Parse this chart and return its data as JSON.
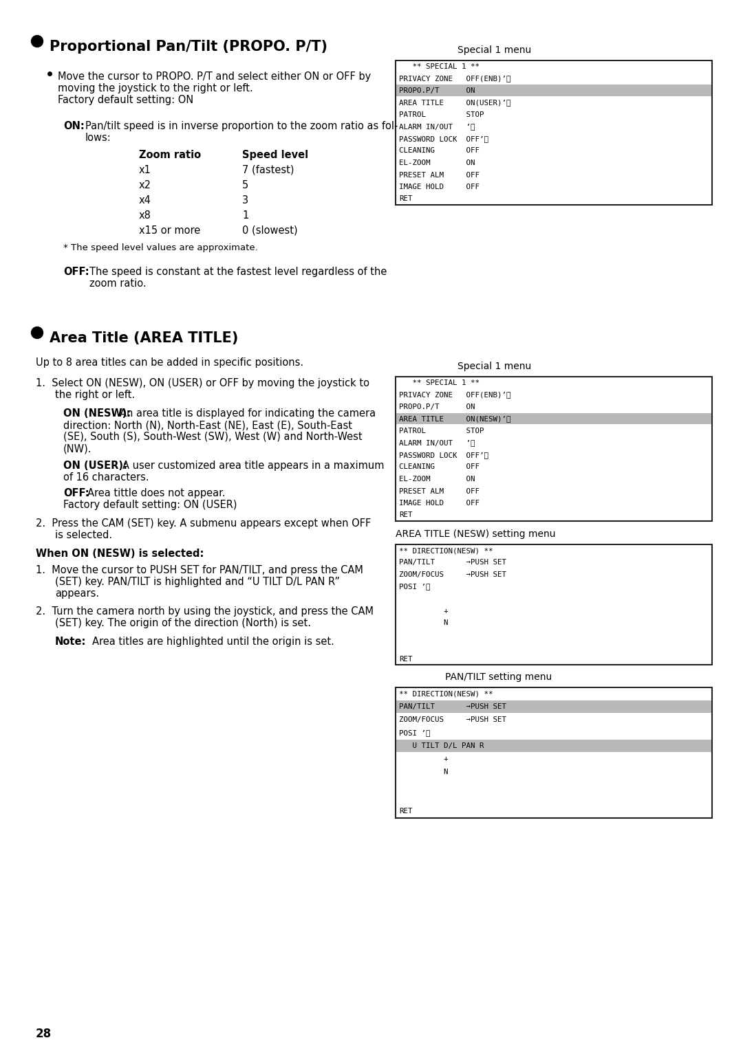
{
  "bg_color": "#ffffff",
  "page_number": "28",
  "menu1_lines": [
    "   ** SPECIAL 1 **",
    "PRIVACY ZONE   OFF(ENB)’⑃",
    "PROPO.P/T      ON",
    "AREA TITLE     ON(USER)’⑃",
    "PATROL         STOP",
    "ALARM IN/OUT   ’⑃",
    "PASSWORD LOCK  OFF’⑃",
    "CLEANING       OFF",
    "EL-ZOOM        ON",
    "PRESET ALM     OFF",
    "IMAGE HOLD     OFF",
    "RET"
  ],
  "menu1_hl": [
    2
  ],
  "menu2_lines": [
    "   ** SPECIAL 1 **",
    "PRIVACY ZONE   OFF(ENB)’⑃",
    "PROPO.P/T      ON",
    "AREA TITLE     ON(NESW)’⑃",
    "PATROL         STOP",
    "ALARM IN/OUT   ’⑃",
    "PASSWORD LOCK  OFF’⑃",
    "CLEANING       OFF",
    "EL-ZOOM        ON",
    "PRESET ALM     OFF",
    "IMAGE HOLD     OFF",
    "RET"
  ],
  "menu2_hl": [
    3
  ],
  "menu3_lines": [
    "** DIRECTION(NESW) **",
    "PAN/TILT       →PUSH SET",
    "ZOOM/FOCUS     →PUSH SET",
    "POSI ’⑃",
    "",
    "          +",
    "          N",
    "",
    "",
    "RET"
  ],
  "menu3_hl": [],
  "menu4_lines": [
    "** DIRECTION(NESW) **",
    "PAN/TILT       →PUSH SET",
    "ZOOM/FOCUS     →PUSH SET",
    "POSI ’⑃",
    "   U TILT D/L PAN R",
    "          +",
    "          N",
    "",
    "",
    "RET"
  ],
  "menu4_hl": [
    1,
    4
  ],
  "zoom_table": [
    [
      "x1",
      "7 (fastest)"
    ],
    [
      "x2",
      "5"
    ],
    [
      "x4",
      "3"
    ],
    [
      "x8",
      "1"
    ],
    [
      "x15 or more",
      "0 (slowest)"
    ]
  ]
}
